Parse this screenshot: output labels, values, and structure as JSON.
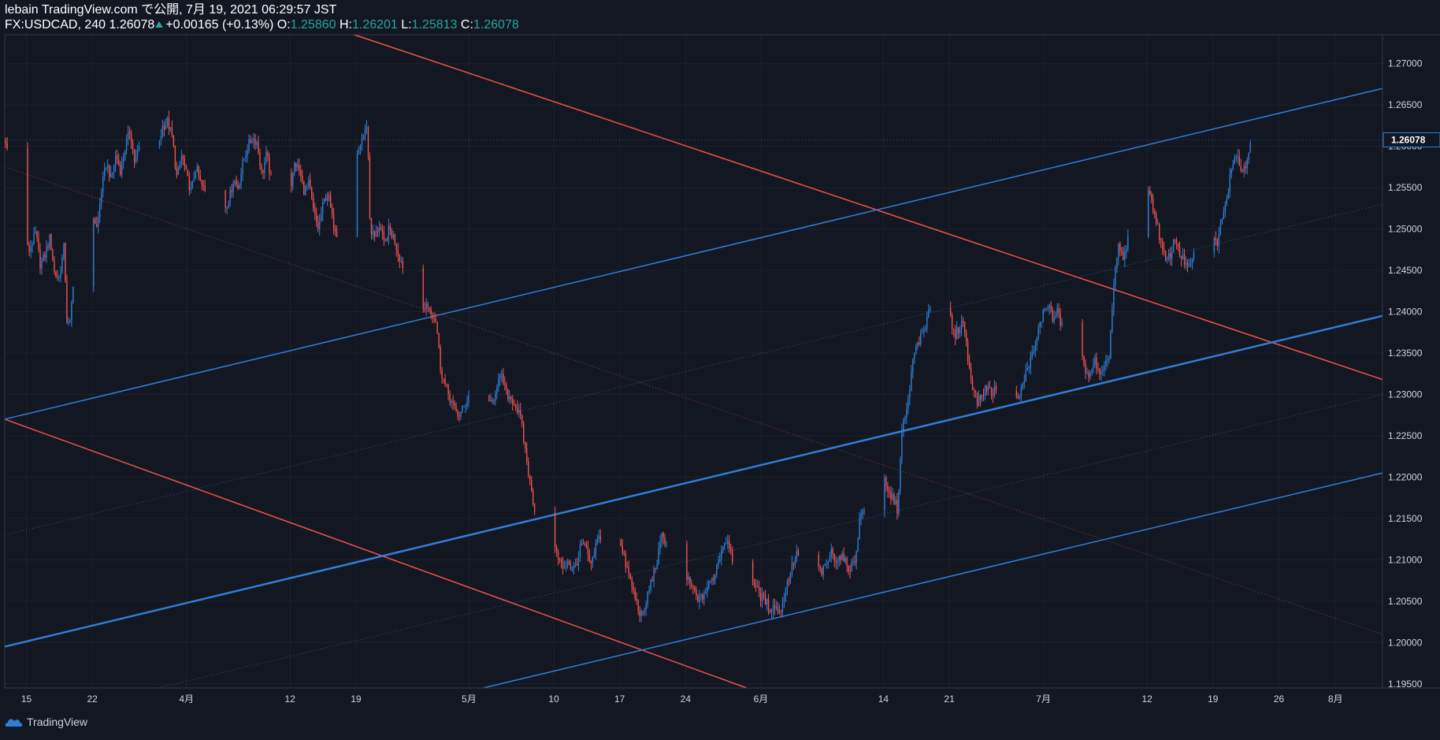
{
  "header": {
    "line1": "lebain TradingView.com で公開, 7月 19, 2021 06:29:57 JST",
    "symbol_prefix": "FX:USDCAD, 240 1.26078",
    "change": "+0.00165 (+0.13%)",
    "o_label": "O:",
    "o_value": "1.25860",
    "h_label": "H:",
    "h_value": "1.26201",
    "l_label": "L:",
    "l_value": "1.25813",
    "c_label": "C:",
    "c_value": "1.26078"
  },
  "footer": {
    "brand": "TradingView"
  },
  "colors": {
    "background": "#131722",
    "up": "#2f7fd6",
    "down": "#ef5350",
    "accent": "#26a69a",
    "grid": "#1e222d"
  },
  "chart_data": {
    "type": "candlestick",
    "symbol": "FX:USDCAD",
    "interval": "240",
    "last_price": "1.26078",
    "ylim": [
      1.1945,
      1.2735
    ],
    "y_ticks": [
      "1.19500",
      "1.20000",
      "1.20500",
      "1.21000",
      "1.21500",
      "1.22000",
      "1.22500",
      "1.23000",
      "1.23500",
      "1.24000",
      "1.24500",
      "1.25000",
      "1.25500",
      "1.26000",
      "1.26500",
      "1.27000"
    ],
    "x_ticks": [
      {
        "label": "15",
        "day": 0
      },
      {
        "label": "22",
        "day": 7
      },
      {
        "label": "4月",
        "day": 17
      },
      {
        "label": "12",
        "day": 28
      },
      {
        "label": "19",
        "day": 35
      },
      {
        "label": "5月",
        "day": 47
      },
      {
        "label": "10",
        "day": 56
      },
      {
        "label": "17",
        "day": 63
      },
      {
        "label": "24",
        "day": 70
      },
      {
        "label": "6月",
        "day": 78
      },
      {
        "label": "14",
        "day": 91
      },
      {
        "label": "21",
        "day": 98
      },
      {
        "label": "7月",
        "day": 108
      },
      {
        "label": "12",
        "day": 119
      },
      {
        "label": "19",
        "day": 126
      },
      {
        "label": "26",
        "day": 133
      },
      {
        "label": "8月",
        "day": 139
      }
    ],
    "x_range_days": [
      -2.3,
      144
    ],
    "close_path": [
      [
        -2.3,
        1.2615
      ],
      [
        -1.5,
        1.2555
      ],
      [
        -1,
        1.258
      ],
      [
        -0.3,
        1.248
      ],
      [
        0.3,
        1.2475
      ],
      [
        1,
        1.2495
      ],
      [
        1.5,
        1.2455
      ],
      [
        2,
        1.247
      ],
      [
        2.5,
        1.249
      ],
      [
        3,
        1.2445
      ],
      [
        3.5,
        1.244
      ],
      [
        4,
        1.248
      ],
      [
        4.3,
        1.239
      ],
      [
        4.6,
        1.238
      ],
      [
        5,
        1.244
      ],
      [
        5.5,
        1.246
      ],
      [
        6,
        1.249
      ],
      [
        6.5,
        1.248
      ],
      [
        7,
        1.252
      ],
      [
        7.5,
        1.25
      ],
      [
        8,
        1.255
      ],
      [
        8.5,
        1.258
      ],
      [
        9,
        1.256
      ],
      [
        9.5,
        1.259
      ],
      [
        10,
        1.257
      ],
      [
        10.5,
        1.26
      ],
      [
        11,
        1.262
      ],
      [
        11.5,
        1.258
      ],
      [
        12,
        1.26
      ],
      [
        12.5,
        1.257
      ],
      [
        13,
        1.259
      ],
      [
        13.5,
        1.261
      ],
      [
        14,
        1.26
      ],
      [
        14.5,
        1.2625
      ],
      [
        15,
        1.263
      ],
      [
        15.5,
        1.261
      ],
      [
        16,
        1.256
      ],
      [
        16.5,
        1.259
      ],
      [
        17,
        1.2565
      ],
      [
        17.5,
        1.2545
      ],
      [
        18,
        1.2575
      ],
      [
        18.5,
        1.2555
      ],
      [
        19,
        1.2545
      ],
      [
        19.5,
        1.257
      ],
      [
        20,
        1.255
      ],
      [
        20.5,
        1.257
      ],
      [
        21,
        1.2525
      ],
      [
        21.5,
        1.2535
      ],
      [
        22,
        1.256
      ],
      [
        22.5,
        1.255
      ],
      [
        23,
        1.258
      ],
      [
        23.5,
        1.26
      ],
      [
        24,
        1.261
      ],
      [
        24.5,
        1.2605
      ],
      [
        25,
        1.2565
      ],
      [
        25.5,
        1.259
      ],
      [
        26,
        1.256
      ],
      [
        26.5,
        1.255
      ],
      [
        27,
        1.253
      ],
      [
        27.5,
        1.256
      ],
      [
        28,
        1.2545
      ],
      [
        28.5,
        1.258
      ],
      [
        29,
        1.257
      ],
      [
        29.5,
        1.2545
      ],
      [
        30,
        1.2555
      ],
      [
        30.5,
        1.252
      ],
      [
        31,
        1.25
      ],
      [
        31.5,
        1.253
      ],
      [
        32,
        1.2545
      ],
      [
        32.5,
        1.251
      ],
      [
        33,
        1.2495
      ],
      [
        33.5,
        1.252
      ],
      [
        34,
        1.2505
      ],
      [
        34.5,
        1.2545
      ],
      [
        35,
        1.258
      ],
      [
        35.5,
        1.2605
      ],
      [
        36,
        1.262
      ],
      [
        36.2,
        1.263
      ],
      [
        36.5,
        1.25
      ],
      [
        37,
        1.249
      ],
      [
        37.5,
        1.2505
      ],
      [
        38,
        1.248
      ],
      [
        38.5,
        1.25
      ],
      [
        39,
        1.249
      ],
      [
        39.5,
        1.247
      ],
      [
        40,
        1.2455
      ],
      [
        40.5,
        1.242
      ],
      [
        41,
        1.2395
      ],
      [
        41.5,
        1.241
      ],
      [
        42,
        1.24
      ],
      [
        42.5,
        1.241
      ],
      [
        43,
        1.24
      ],
      [
        43.5,
        1.239
      ],
      [
        44,
        1.233
      ],
      [
        44.5,
        1.231
      ],
      [
        45,
        1.2295
      ],
      [
        45.5,
        1.228
      ],
      [
        46,
        1.2275
      ],
      [
        46.5,
        1.2285
      ],
      [
        47,
        1.23
      ],
      [
        47.5,
        1.2285
      ],
      [
        48,
        1.2295
      ],
      [
        48.5,
        1.231
      ],
      [
        49,
        1.2285
      ],
      [
        49.5,
        1.229
      ],
      [
        50,
        1.2315
      ],
      [
        50.5,
        1.232
      ],
      [
        51,
        1.23
      ],
      [
        51.5,
        1.2295
      ],
      [
        52,
        1.2285
      ],
      [
        52.5,
        1.227
      ],
      [
        53,
        1.223
      ],
      [
        53.5,
        1.219
      ],
      [
        54,
        1.216
      ],
      [
        54.5,
        1.2155
      ],
      [
        55,
        1.2165
      ],
      [
        55.5,
        1.215
      ],
      [
        56,
        1.212
      ],
      [
        56.5,
        1.21
      ],
      [
        57,
        1.209
      ],
      [
        57.5,
        1.21
      ],
      [
        58,
        1.2085
      ],
      [
        58.5,
        1.21
      ],
      [
        59,
        1.212
      ],
      [
        59.5,
        1.211
      ],
      [
        60,
        1.209
      ],
      [
        60.5,
        1.212
      ],
      [
        61,
        1.213
      ],
      [
        61.5,
        1.214
      ],
      [
        62,
        1.215
      ],
      [
        62.5,
        1.2165
      ],
      [
        63,
        1.212
      ],
      [
        63.5,
        1.21
      ],
      [
        64,
        1.208
      ],
      [
        64.5,
        1.206
      ],
      [
        65,
        1.204
      ],
      [
        65.5,
        1.203
      ],
      [
        66,
        1.206
      ],
      [
        66.5,
        1.208
      ],
      [
        67,
        1.21
      ],
      [
        67.5,
        1.213
      ],
      [
        68,
        1.212
      ],
      [
        68.5,
        1.209
      ],
      [
        69,
        1.207
      ],
      [
        69.5,
        1.206
      ],
      [
        70,
        1.208
      ],
      [
        70.5,
        1.207
      ],
      [
        71,
        1.206
      ],
      [
        71.5,
        1.205
      ],
      [
        72,
        1.206
      ],
      [
        72.5,
        1.207
      ],
      [
        73,
        1.208
      ],
      [
        73.5,
        1.21
      ],
      [
        74,
        1.212
      ],
      [
        74.5,
        1.2125
      ],
      [
        75,
        1.21
      ],
      [
        75.5,
        1.208
      ],
      [
        76,
        1.209
      ],
      [
        76.5,
        1.2075
      ],
      [
        77,
        1.208
      ],
      [
        77.5,
        1.2065
      ],
      [
        78,
        1.2055
      ],
      [
        78.5,
        1.205
      ],
      [
        79,
        1.204
      ],
      [
        79.5,
        1.2045
      ],
      [
        80,
        1.2035
      ],
      [
        80.5,
        1.206
      ],
      [
        81,
        1.208
      ],
      [
        81.5,
        1.21
      ],
      [
        82,
        1.211
      ],
      [
        82.5,
        1.212
      ],
      [
        83,
        1.21
      ],
      [
        83.5,
        1.208
      ],
      [
        84,
        1.209
      ],
      [
        84.5,
        1.2085
      ],
      [
        85,
        1.2095
      ],
      [
        85.5,
        1.211
      ],
      [
        86,
        1.21
      ],
      [
        86.5,
        1.2105
      ],
      [
        87,
        1.2095
      ],
      [
        87.5,
        1.209
      ],
      [
        88,
        1.21
      ],
      [
        88.5,
        1.215
      ],
      [
        89,
        1.2165
      ],
      [
        89.5,
        1.216
      ],
      [
        90,
        1.2155
      ],
      [
        90.5,
        1.217
      ],
      [
        91,
        1.22
      ],
      [
        91.5,
        1.218
      ],
      [
        92,
        1.2175
      ],
      [
        92.5,
        1.216
      ],
      [
        93,
        1.226
      ],
      [
        93.5,
        1.228
      ],
      [
        94,
        1.233
      ],
      [
        94.5,
        1.236
      ],
      [
        95,
        1.237
      ],
      [
        95.5,
        1.238
      ],
      [
        96,
        1.241
      ],
      [
        96.5,
        1.246
      ],
      [
        97,
        1.247
      ],
      [
        97.5,
        1.244
      ],
      [
        98,
        1.24
      ],
      [
        98.5,
        1.237
      ],
      [
        99,
        1.238
      ],
      [
        99.5,
        1.239
      ],
      [
        100,
        1.234
      ],
      [
        100.5,
        1.231
      ],
      [
        101,
        1.229
      ],
      [
        101.5,
        1.23
      ],
      [
        102,
        1.231
      ],
      [
        102.5,
        1.23
      ],
      [
        103,
        1.231
      ],
      [
        103.5,
        1.23
      ],
      [
        104,
        1.232
      ],
      [
        104.5,
        1.23
      ],
      [
        105,
        1.229
      ],
      [
        105.5,
        1.23
      ],
      [
        106,
        1.232
      ],
      [
        106.5,
        1.234
      ],
      [
        107,
        1.235
      ],
      [
        107.5,
        1.238
      ],
      [
        108,
        1.24
      ],
      [
        108.5,
        1.241
      ],
      [
        109,
        1.239
      ],
      [
        109.5,
        1.24
      ],
      [
        110,
        1.238
      ],
      [
        110.5,
        1.242
      ],
      [
        111,
        1.244
      ],
      [
        111.5,
        1.241
      ],
      [
        112,
        1.235
      ],
      [
        112.5,
        1.232
      ],
      [
        113,
        1.233
      ],
      [
        113.5,
        1.234
      ],
      [
        114,
        1.232
      ],
      [
        114.5,
        1.233
      ],
      [
        115,
        1.235
      ],
      [
        115.5,
        1.244
      ],
      [
        116,
        1.248
      ],
      [
        116.5,
        1.246
      ],
      [
        117,
        1.249
      ],
      [
        117.5,
        1.247
      ],
      [
        118,
        1.251
      ],
      [
        118.5,
        1.258
      ],
      [
        119,
        1.256
      ],
      [
        119.5,
        1.253
      ],
      [
        120,
        1.251
      ],
      [
        120.5,
        1.248
      ],
      [
        121,
        1.246
      ],
      [
        121.5,
        1.247
      ],
      [
        122,
        1.249
      ],
      [
        122.5,
        1.247
      ],
      [
        123,
        1.246
      ],
      [
        123.5,
        1.245
      ],
      [
        124,
        1.247
      ],
      [
        124.5,
        1.251
      ],
      [
        125,
        1.252
      ],
      [
        125.5,
        1.251
      ],
      [
        126,
        1.25
      ],
      [
        126.5,
        1.248
      ],
      [
        127,
        1.252
      ],
      [
        127.5,
        1.254
      ],
      [
        128,
        1.258
      ],
      [
        128.5,
        1.259
      ],
      [
        129,
        1.257
      ],
      [
        129.5,
        1.258
      ],
      [
        130,
        1.2608
      ]
    ],
    "trend_lines": [
      {
        "name": "red-upper",
        "color": "#ef5350",
        "width": 1.5,
        "style": "solid",
        "p1": [
          34.8,
          1.2735
        ],
        "p2": [
          144,
          1.2318
        ]
      },
      {
        "name": "red-lower",
        "color": "#ef5350",
        "width": 1.5,
        "style": "solid",
        "p1": [
          -2.3,
          1.227
        ],
        "p2": [
          76.5,
          1.1945
        ]
      },
      {
        "name": "red-mid",
        "color": "#ef5350",
        "width": 1,
        "style": "dotted",
        "p1": [
          -2.3,
          1.2575
        ],
        "p2": [
          144,
          1.201
        ]
      },
      {
        "name": "blue-upper",
        "color": "#2f7fd6",
        "width": 1.5,
        "style": "solid",
        "p1": [
          -2.3,
          1.227
        ],
        "p2": [
          144,
          1.267
        ]
      },
      {
        "name": "blue-middle",
        "color": "#2f7fd6",
        "width": 2.5,
        "style": "solid",
        "p1": [
          -2.3,
          1.1995
        ],
        "p2": [
          144,
          1.2395
        ]
      },
      {
        "name": "blue-lower",
        "color": "#2f7fd6",
        "width": 1.5,
        "style": "solid",
        "p1": [
          48.5,
          1.1945
        ],
        "p2": [
          144,
          1.2205
        ]
      },
      {
        "name": "blue-dot-upper",
        "color": "#2f7fd6",
        "width": 1,
        "style": "dotted",
        "p1": [
          -2.3,
          1.213
        ],
        "p2": [
          144,
          1.253
        ]
      },
      {
        "name": "blue-dot-lower",
        "color": "#2f7fd6",
        "width": 1,
        "style": "dotted",
        "p1": [
          14,
          1.1945
        ],
        "p2": [
          144,
          1.23
        ]
      }
    ]
  }
}
